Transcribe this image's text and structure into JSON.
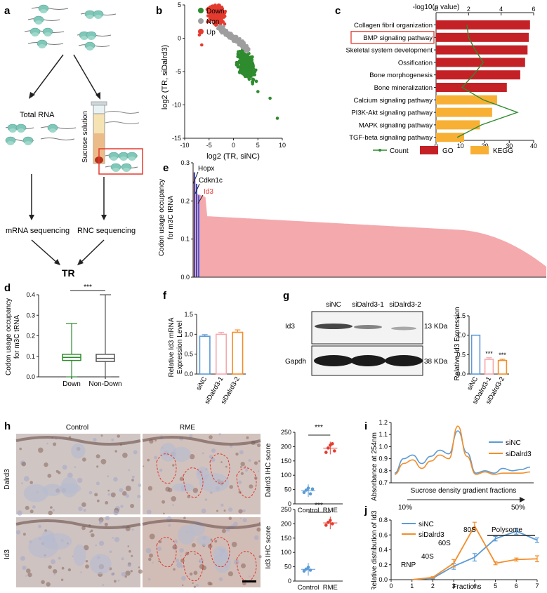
{
  "panel_labels": {
    "a": "a",
    "b": "b",
    "c": "c",
    "d": "d",
    "e": "e",
    "f": "f",
    "g": "g",
    "h": "h",
    "i": "i",
    "j": "j"
  },
  "colors": {
    "down": "#2e8b2e",
    "non": "#9e9e9e",
    "up": "#e53a2e",
    "go": "#c42127",
    "kegg": "#f7b034",
    "pink": "#f4a9ad",
    "blue": "#5b9bd5",
    "orange": "#f28e2b"
  },
  "a": {
    "total_rna": "Total RNA",
    "sucrose": "Sucrose solution",
    "mrna_seq": "mRNA sequencing",
    "rnc_seq": "RNC sequencing",
    "tr": "TR"
  },
  "b": {
    "legend": [
      "Down",
      "Non",
      "Up"
    ],
    "xlabel": "log2 (TR, siNC)",
    "ylabel": "log2 (TR, siDalrd3)"
  },
  "c": {
    "top_axis_label": "-log10(p value)",
    "legend": {
      "count": "Count",
      "go": "GO",
      "kegg": "KEGG"
    },
    "highlighted": "BMP signaling pathway"
  },
  "e": {
    "ylabel_1": "Codon usage occupancy",
    "ylabel_2": "for m3C tRNA",
    "annot": [
      "Hopx",
      "Cdkn1c",
      "Id3"
    ]
  },
  "d": {
    "ylabel_1": "Codon usage occupancy",
    "ylabel_2": "for m3C tRNA",
    "sig": "***"
  },
  "f": {
    "ylabel_1": "Relative Id3 mRNA",
    "ylabel_2": "Expression Level"
  },
  "g": {
    "lanes": [
      "siNC",
      "siDalrd3-1",
      "siDalrd3-2"
    ],
    "bands": [
      "Id3",
      "Gapdh"
    ],
    "kda": [
      "13 KDa",
      "38 KDa"
    ],
    "ylabel": "Relative Id3 Expression",
    "sig": "***"
  },
  "h": {
    "col_titles": [
      "Control",
      "RME"
    ],
    "row_titles": [
      "Dalrd3",
      "Id3"
    ],
    "sig": "***",
    "plot1_ylabel": "Dalrd3 IHC score",
    "plot2_ylabel": "Id3 IHC score",
    "xcats": [
      "Control",
      "RME"
    ]
  },
  "i": {
    "ylabel": "Absorbance at 254nm",
    "xlabel": "Sucrose density gradient fractions",
    "pct_low": "10%",
    "pct_high": "50%",
    "legend": [
      "siNC",
      "siDalrd3"
    ]
  },
  "j": {
    "ylabel_1": "Relative distribution of Id3",
    "xlabel": "Fractions",
    "annot": {
      "rnp": "RNP",
      "s40": "40S",
      "s60": "60S",
      "s80": "80S",
      "polysome": "Polysome"
    },
    "legend": [
      "siNC",
      "siDalrd3"
    ]
  },
  "chart_data": [
    {
      "id": "b",
      "type": "scatter",
      "xlim": [
        -10,
        10
      ],
      "ylim": [
        -15,
        5
      ],
      "xticks": [
        "-10",
        "-5",
        "0",
        "5",
        "10"
      ],
      "yticks": [
        "-15",
        "-10",
        "-5",
        "0",
        "5"
      ],
      "series": [
        {
          "name": "Down",
          "color": "#2e8b2e"
        },
        {
          "name": "Non",
          "color": "#9e9e9e"
        },
        {
          "name": "Up",
          "color": "#e53a2e"
        }
      ],
      "outliers": [
        [
          9,
          -12
        ],
        [
          7.5,
          -9
        ],
        [
          5,
          -8
        ],
        [
          -7,
          0.5
        ],
        [
          -6.5,
          -1
        ],
        [
          -5,
          2.5
        ]
      ]
    },
    {
      "id": "c",
      "type": "bar",
      "orientation": "horizontal",
      "xlim": [
        0,
        40
      ],
      "top_xlim": [
        0,
        6
      ],
      "xticks": [
        "0",
        "10",
        "20",
        "30",
        "40"
      ],
      "top_ticks": [
        "0",
        "2",
        "4",
        "6"
      ],
      "categories": [
        "Collagen fibril organization",
        "BMP signaling pathway",
        "Skeletal system development",
        "Ossification",
        "Bone morphogenesis",
        "Bone mineralization",
        "Calcium signaling pathway",
        "PI3K-Akt signaling pathway",
        "MAPK signaling pathway",
        "TGF-beta signaling pathway"
      ],
      "values": [
        38.5,
        38,
        37.5,
        36.5,
        34.5,
        29,
        25,
        23,
        18,
        11.5
      ],
      "group": [
        "GO",
        "GO",
        "GO",
        "GO",
        "GO",
        "GO",
        "KEGG",
        "KEGG",
        "KEGG",
        "KEGG"
      ],
      "count_line": [
        1.9,
        2.0,
        2.4,
        2.9,
        2.3,
        1.6,
        2.9,
        5.0,
        2.8,
        1.3
      ]
    },
    {
      "id": "e",
      "type": "area",
      "ylim": [
        0,
        0.3
      ],
      "yticks": [
        "0.0",
        "0.1",
        "0.2",
        "0.3"
      ],
      "top": 0.275,
      "shoulder": 0.22,
      "mid": 0.16,
      "end": 0.05
    },
    {
      "id": "d",
      "type": "box",
      "categories": [
        "Down",
        "Non-Down"
      ],
      "ylim": [
        0,
        0.4
      ],
      "yticks": [
        "0.0",
        "0.1",
        "0.2",
        "0.3",
        "0.4"
      ],
      "boxes": [
        {
          "min": 0.0,
          "q1": 0.08,
          "median": 0.095,
          "q3": 0.11,
          "max": 0.26,
          "color": "#2e8b2e"
        },
        {
          "min": 0.0,
          "q1": 0.075,
          "median": 0.09,
          "q3": 0.11,
          "max": 0.4,
          "color": "#555555"
        }
      ]
    },
    {
      "id": "f",
      "type": "bar",
      "categories": [
        "siNC",
        "siDalrd3-1",
        "siDalrd3-2"
      ],
      "values": [
        0.95,
        1.0,
        1.05
      ],
      "errors": [
        0.04,
        0.05,
        0.06
      ],
      "ylim": [
        0,
        1.5
      ],
      "yticks": [
        "0.0",
        "0.5",
        "1.0",
        "1.5"
      ],
      "colors": [
        "#5b9bd5",
        "#f4a9ad",
        "#f28e2b"
      ]
    },
    {
      "id": "g",
      "type": "bar",
      "categories": [
        "siNC",
        "siDalrd3-1",
        "siDalrd3-2"
      ],
      "values": [
        1.0,
        0.38,
        0.35
      ],
      "errors": [
        0,
        0.04,
        0.03
      ],
      "ylim": [
        0,
        1.5
      ],
      "yticks": [
        "0.0",
        "0.5",
        "1.0",
        "1.5"
      ],
      "colors": [
        "#5b9bd5",
        "#f4a9ad",
        "#f28e2b"
      ]
    },
    {
      "id": "h1",
      "type": "scatter",
      "categories": [
        "Control",
        "RME"
      ],
      "ylim": [
        0,
        250
      ],
      "yticks": [
        "0",
        "50",
        "100",
        "150",
        "200",
        "250"
      ],
      "points": [
        [
          [
            0,
            40
          ],
          [
            0,
            48
          ],
          [
            0,
            55
          ],
          [
            0,
            35
          ],
          [
            0,
            52
          ]
        ],
        [
          [
            1,
            180
          ],
          [
            1,
            195
          ],
          [
            1,
            205
          ],
          [
            1,
            210
          ],
          [
            1,
            185
          ]
        ]
      ],
      "means": [
        46,
        195
      ],
      "colors": [
        "#5b9bd5",
        "#e53a2e"
      ]
    },
    {
      "id": "h2",
      "type": "scatter",
      "categories": [
        "Control",
        "RME"
      ],
      "ylim": [
        0,
        250
      ],
      "yticks": [
        "0",
        "50",
        "100",
        "150",
        "200",
        "250"
      ],
      "points": [
        [
          [
            0,
            35
          ],
          [
            0,
            42
          ],
          [
            0,
            48
          ],
          [
            0,
            38
          ]
        ],
        [
          [
            1,
            195
          ],
          [
            1,
            205
          ],
          [
            1,
            212
          ],
          [
            1,
            200
          ]
        ]
      ],
      "means": [
        41,
        203
      ],
      "colors": [
        "#5b9bd5",
        "#e53a2e"
      ]
    },
    {
      "id": "i",
      "type": "line",
      "ylim": [
        0.7,
        1.2
      ],
      "yticks": [
        "0.7",
        "0.8",
        "0.9",
        "1.0",
        "1.1",
        "1.2"
      ],
      "series": [
        {
          "name": "siNC",
          "color": "#5b9bd5",
          "values": [
            0.78,
            0.9,
            0.93,
            0.86,
            0.92,
            0.97,
            0.94,
            1.13,
            0.95,
            0.78,
            0.8,
            0.78,
            0.82,
            0.8,
            0.81,
            0.83
          ]
        },
        {
          "name": "siDalrd3",
          "color": "#f28e2b",
          "values": [
            0.77,
            0.86,
            0.89,
            0.82,
            0.88,
            0.93,
            0.9,
            1.17,
            0.92,
            0.77,
            0.79,
            0.77,
            0.78,
            0.78,
            0.78,
            0.79
          ]
        }
      ]
    },
    {
      "id": "j",
      "type": "line",
      "x": [
        1,
        2,
        3,
        4,
        5,
        6,
        7
      ],
      "xticks": [
        "0",
        "1",
        "2",
        "3",
        "4",
        "5",
        "6",
        "7"
      ],
      "xlim": [
        0,
        7
      ],
      "ylim": [
        0,
        0.8
      ],
      "yticks": [
        "0.0",
        "0.2",
        "0.4",
        "0.6",
        "0.8"
      ],
      "series": [
        {
          "name": "siNC",
          "color": "#5b9bd5",
          "values": [
            0.0,
            0.02,
            0.18,
            0.3,
            0.55,
            0.65,
            0.53
          ],
          "errors": [
            0,
            0.01,
            0.04,
            0.05,
            0.03,
            0.04,
            0.03
          ]
        },
        {
          "name": "siDalrd3",
          "color": "#f28e2b",
          "values": [
            0.0,
            0.03,
            0.22,
            0.72,
            0.22,
            0.27,
            0.28
          ],
          "errors": [
            0,
            0.01,
            0.05,
            0.05,
            0.02,
            0.02,
            0.04
          ]
        }
      ]
    }
  ]
}
